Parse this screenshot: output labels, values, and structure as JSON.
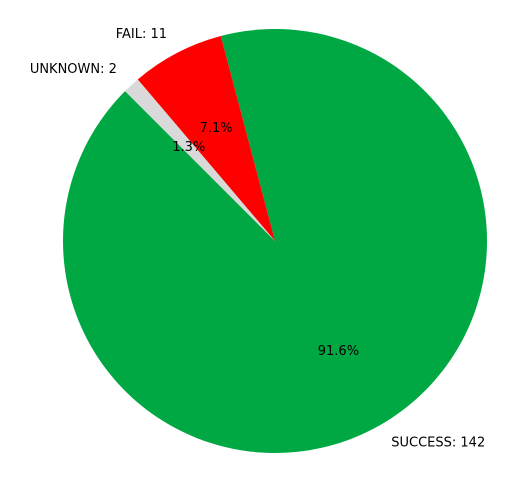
{
  "chart_data": {
    "type": "pie",
    "title": "",
    "categories": [
      "SUCCESS",
      "FAIL",
      "UNKNOWN"
    ],
    "values": [
      142,
      11,
      2
    ],
    "labels": [
      "SUCCESS: 142",
      "FAIL: 11",
      "UNKNOWN: 2"
    ],
    "percent_labels": [
      "91.6%",
      "7.1%",
      "1.3%"
    ],
    "colors": [
      "#00a843",
      "#ff0000",
      "#d9d9d9"
    ],
    "start_angle_deg": 135,
    "legend": "none"
  }
}
